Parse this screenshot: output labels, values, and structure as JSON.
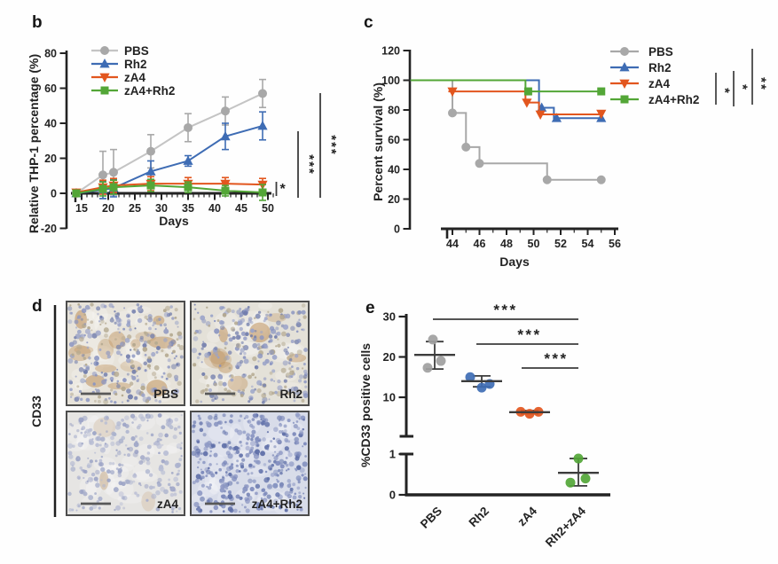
{
  "panels": {
    "b": {
      "letter": "b",
      "ylabel": "Relative THP-1 percentage (%)",
      "xlabel": "Days"
    },
    "c": {
      "letter": "c",
      "ylabel": "Percent survival (%)",
      "xlabel": "Days"
    },
    "d": {
      "letter": "d",
      "row_label": "CD33",
      "images": [
        {
          "label": "PBS",
          "base": "#e7e3da",
          "dot_colors": [
            "#8a94c0",
            "#707cab",
            "#9aa3c8",
            "#b3a88f"
          ],
          "dots": 300,
          "brown": 14,
          "brown_color": "#bf935e",
          "seed": 11
        },
        {
          "label": "Rh2",
          "base": "#e4e1d8",
          "dot_colors": [
            "#8a94c0",
            "#707cab",
            "#9aa3c8",
            "#b3a88f"
          ],
          "dots": 300,
          "brown": 9,
          "brown_color": "#bf935e",
          "seed": 29
        },
        {
          "label": "zA4",
          "base": "#e6e5e3",
          "dot_colors": [
            "#aab1cd",
            "#99a1c4",
            "#b8bdd4"
          ],
          "dots": 260,
          "brown": 3,
          "brown_color": "#cdb392",
          "seed": 47
        },
        {
          "label": "zA4+Rh2",
          "base": "#d8dce9",
          "dot_colors": [
            "#7c89bb",
            "#5f6fa8",
            "#8e99c4"
          ],
          "dots": 400,
          "brown": 0,
          "brown_color": "#bf935e",
          "seed": 83
        }
      ]
    },
    "e": {
      "letter": "e",
      "ylabel": "%CD33 positive cells"
    }
  },
  "chart_data": [
    {
      "panel": "b",
      "type": "line",
      "xlabel": "Days",
      "ylabel": "Relative THP-1 percentage (%)",
      "x": [
        14,
        19,
        21,
        28,
        35,
        42,
        49
      ],
      "xticks": [
        15,
        20,
        25,
        30,
        35,
        40,
        45,
        50
      ],
      "yticks": [
        -20,
        0,
        20,
        40,
        60,
        80
      ],
      "xlim": [
        13,
        51
      ],
      "ylim": [
        -20,
        80
      ],
      "legend_position": "top-left",
      "series": [
        {
          "name": "PBS",
          "color": "#a8a8a8",
          "line_color": "#c4c4c4",
          "marker": "circle",
          "values": [
            0,
            10.5,
            12,
            24,
            37.5,
            47,
            57
          ],
          "errors": [
            1.5,
            13.5,
            13,
            9.5,
            8,
            8,
            8
          ]
        },
        {
          "name": "Rh2",
          "color": "#3e6cb4",
          "line_color": "#3e6cb4",
          "marker": "triangle-up",
          "values": [
            0,
            2,
            3,
            12.5,
            18.5,
            32.5,
            38.5
          ],
          "errors": [
            1,
            5,
            5,
            6,
            3,
            7.5,
            8
          ]
        },
        {
          "name": "zA4",
          "color": "#e2561e",
          "line_color": "#e2561e",
          "marker": "triangle-down",
          "values": [
            0.5,
            3.5,
            4.5,
            5.5,
            5.5,
            5.5,
            5
          ],
          "errors": [
            1,
            4,
            4,
            4,
            3.5,
            3.5,
            3.5
          ]
        },
        {
          "name": "zA4+Rh2",
          "color": "#53a637",
          "line_color": "#53a637",
          "marker": "square",
          "values": [
            0,
            2.5,
            3.5,
            4.5,
            3.5,
            1.5,
            0.5
          ],
          "errors": [
            1,
            4,
            4,
            3.5,
            3,
            3,
            4.5
          ]
        }
      ],
      "significance": [
        {
          "label": "*"
        },
        {
          "label": "***"
        },
        {
          "label": "***"
        }
      ]
    },
    {
      "panel": "c",
      "type": "line",
      "step": true,
      "xlabel": "Days",
      "ylabel": "Percent survival (%)",
      "xticks": [
        44,
        46,
        48,
        50,
        52,
        54,
        56
      ],
      "yticks": [
        0,
        20,
        40,
        60,
        80,
        100,
        120
      ],
      "xlim": [
        40.8,
        56
      ],
      "ylim": [
        0,
        120
      ],
      "legend_position": "right",
      "series": [
        {
          "name": "PBS",
          "color": "#a8a8a8",
          "marker": "circle",
          "steps": [
            [
              40.9,
              100
            ],
            [
              44,
              100
            ],
            [
              44,
              78
            ],
            [
              45,
              78
            ],
            [
              45,
              55
            ],
            [
              46,
              55
            ],
            [
              46,
              44
            ],
            [
              51,
              44
            ],
            [
              51,
              33
            ],
            [
              55,
              33
            ]
          ],
          "markers": [
            [
              44,
              78
            ],
            [
              45,
              55
            ],
            [
              46,
              44
            ],
            [
              51,
              33
            ],
            [
              55,
              33
            ]
          ]
        },
        {
          "name": "Rh2",
          "color": "#3e6cb4",
          "marker": "triangle-up",
          "steps": [
            [
              40.9,
              100
            ],
            [
              50.4,
              100
            ],
            [
              50.4,
              81.5
            ],
            [
              51.5,
              81.5
            ],
            [
              51.5,
              74.5
            ],
            [
              55,
              74.5
            ]
          ],
          "markers": [
            [
              50.6,
              81.5
            ],
            [
              51.7,
              74.5
            ],
            [
              55,
              74.5
            ]
          ]
        },
        {
          "name": "zA4",
          "color": "#e2561e",
          "marker": "triangle-down",
          "steps": [
            [
              43.7,
              92.5
            ],
            [
              49.4,
              92.5
            ],
            [
              49.4,
              85
            ],
            [
              50.4,
              85
            ],
            [
              50.4,
              77
            ],
            [
              55,
              77
            ]
          ],
          "markers": [
            [
              44,
              92.5
            ],
            [
              49.5,
              85
            ],
            [
              50.5,
              77
            ],
            [
              55,
              77.5
            ]
          ]
        },
        {
          "name": "zA4+Rh2",
          "color": "#53a637",
          "marker": "square",
          "steps": [
            [
              40.9,
              100
            ],
            [
              49.4,
              100
            ],
            [
              49.4,
              92.5
            ],
            [
              55,
              92.5
            ]
          ],
          "markers": [
            [
              49.6,
              92.5
            ],
            [
              55,
              92.5
            ]
          ]
        }
      ],
      "significance": [
        {
          "label": "*"
        },
        {
          "label": "*"
        },
        {
          "label": "**"
        }
      ]
    },
    {
      "panel": "e",
      "type": "scatter",
      "ylabel": "%CD33 positive cells",
      "categories": [
        "PBS",
        "Rh2",
        "zA4",
        "Rh2+zA4"
      ],
      "axis_break": {
        "upper_ticks": [
          10,
          20,
          30
        ],
        "lower_ticks": [
          0,
          1
        ]
      },
      "groups": [
        {
          "name": "PBS",
          "color": "#a0a0a0",
          "segment": "upper",
          "values": [
            24.3,
            19.0,
            17.3
          ],
          "x_offsets": [
            -2,
            7,
            -8
          ],
          "mean": 20.5,
          "sd_low": 17.0,
          "sd_high": 23.8
        },
        {
          "name": "Rh2",
          "color": "#3e6cb4",
          "segment": "upper",
          "values": [
            15.0,
            12.4,
            13.3
          ],
          "x_offsets": [
            -13,
            0,
            9
          ],
          "mean": 14.0,
          "sd_low": 12.6,
          "sd_high": 15.3
        },
        {
          "name": "zA4",
          "color": "#e2561e",
          "segment": "upper",
          "values": [
            6.4,
            5.9,
            6.4
          ],
          "x_offsets": [
            -10,
            0,
            10
          ],
          "mean": 6.3,
          "sd_low": 5.9,
          "sd_high": 6.7
        },
        {
          "name": "Rh2+zA4",
          "color": "#53a637",
          "segment": "lower",
          "values": [
            0.89,
            0.3,
            0.4
          ],
          "x_offsets": [
            0,
            -9,
            8
          ],
          "mean": 0.54,
          "sd_low": 0.22,
          "sd_high": 0.89
        }
      ],
      "significance": [
        {
          "from": "PBS",
          "to": "Rh2+zA4",
          "label": "***"
        },
        {
          "from": "Rh2",
          "to": "Rh2+zA4",
          "label": "***"
        },
        {
          "from": "zA4",
          "to": "Rh2+zA4",
          "label": "***"
        }
      ]
    }
  ],
  "colors": {
    "pbs": "#a8a8a8",
    "rh2": "#3e6cb4",
    "za4": "#e2561e",
    "za4rh2": "#53a637",
    "axis": "#232323",
    "significance": "#3c3c3c"
  }
}
